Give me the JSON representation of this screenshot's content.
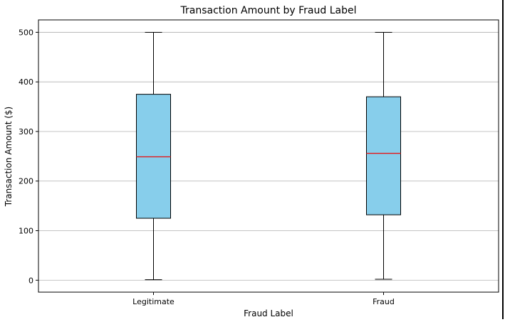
{
  "chart_data": {
    "type": "box",
    "title": "Transaction Amount by Fraud Label",
    "xlabel": "Fraud Label",
    "ylabel": "Transaction Amount ($)",
    "categories": [
      "Legitimate",
      "Fraud"
    ],
    "boxes": [
      {
        "label": "Legitimate",
        "whisker_low": 1,
        "q1": 125,
        "median": 249,
        "q3": 375,
        "whisker_high": 500
      },
      {
        "label": "Fraud",
        "whisker_low": 2,
        "q1": 132,
        "median": 256,
        "q3": 370,
        "whisker_high": 500
      }
    ],
    "ylim": [
      -24,
      525
    ],
    "yticks": [
      0,
      100,
      200,
      300,
      400,
      500
    ],
    "grid": "horizontal",
    "colors": {
      "box_fill": "#87ceeb",
      "box_edge": "#000000",
      "median": "#e41a1c",
      "grid": "#b0b0b0"
    }
  }
}
